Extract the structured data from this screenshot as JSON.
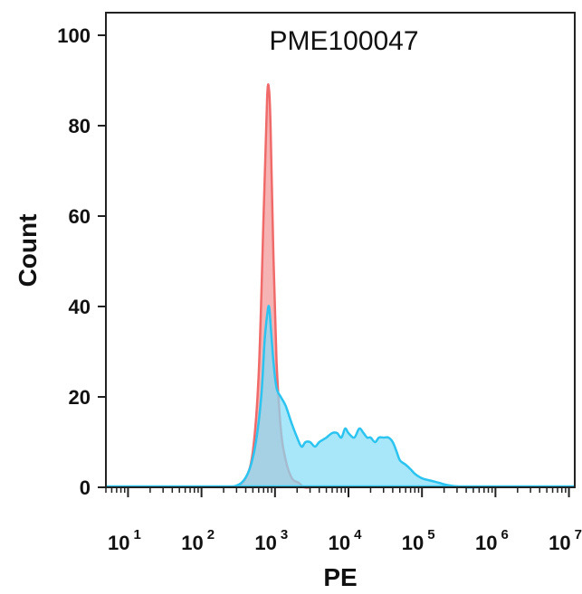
{
  "chart_data": {
    "type": "area",
    "title": "PME100047",
    "xlabel": "PE",
    "ylabel": "Count",
    "xscale": "log",
    "xlim": [
      5,
      12000000
    ],
    "ylim": [
      0,
      105
    ],
    "yticks": [
      0,
      20,
      40,
      60,
      80,
      100
    ],
    "xticks": [
      {
        "value": 10,
        "base": "10",
        "exp": "1"
      },
      {
        "value": 100,
        "base": "10",
        "exp": "2"
      },
      {
        "value": 1000,
        "base": "10",
        "exp": "3"
      },
      {
        "value": 10000,
        "base": "10",
        "exp": "4"
      },
      {
        "value": 100000,
        "base": "10",
        "exp": "5"
      },
      {
        "value": 1000000,
        "base": "10",
        "exp": "6"
      },
      {
        "value": 10000000,
        "base": "10",
        "exp": "7"
      }
    ],
    "grid": false,
    "series": [
      {
        "color": "#f06a6a",
        "fill": "#f4a6a6",
        "x": [
          300,
          400,
          500,
          600,
          700,
          780,
          830,
          870,
          950,
          1050,
          1200,
          1400,
          1700,
          2100,
          2500,
          3000
        ],
        "y": [
          0,
          2,
          8,
          25,
          60,
          86,
          88,
          80,
          52,
          28,
          13,
          6,
          2,
          1,
          0,
          0
        ]
      },
      {
        "color": "#2bc4f0",
        "fill": "#87dcf7",
        "x": [
          250,
          350,
          450,
          550,
          650,
          720,
          780,
          830,
          880,
          950,
          1050,
          1200,
          1400,
          1700,
          2000,
          2300,
          2600,
          3000,
          3500,
          4000,
          5000,
          6000,
          7000,
          8000,
          9000,
          10000,
          12000,
          14000,
          16000,
          18000,
          20000,
          23000,
          26000,
          30000,
          35000,
          40000,
          45000,
          50000,
          60000,
          70000,
          80000,
          100000,
          130000,
          170000,
          220000,
          300000,
          400000,
          600000
        ],
        "y": [
          0,
          1,
          4,
          10,
          20,
          32,
          38,
          40,
          35,
          28,
          22,
          20,
          18,
          14,
          11,
          9,
          10,
          10,
          9,
          10,
          11,
          12,
          12,
          11,
          13,
          12,
          11,
          13,
          12,
          11,
          11,
          10,
          11,
          11,
          11,
          10,
          8,
          6,
          5,
          4,
          3,
          2,
          1.5,
          1,
          0.5,
          0.2,
          0,
          0
        ]
      }
    ]
  }
}
